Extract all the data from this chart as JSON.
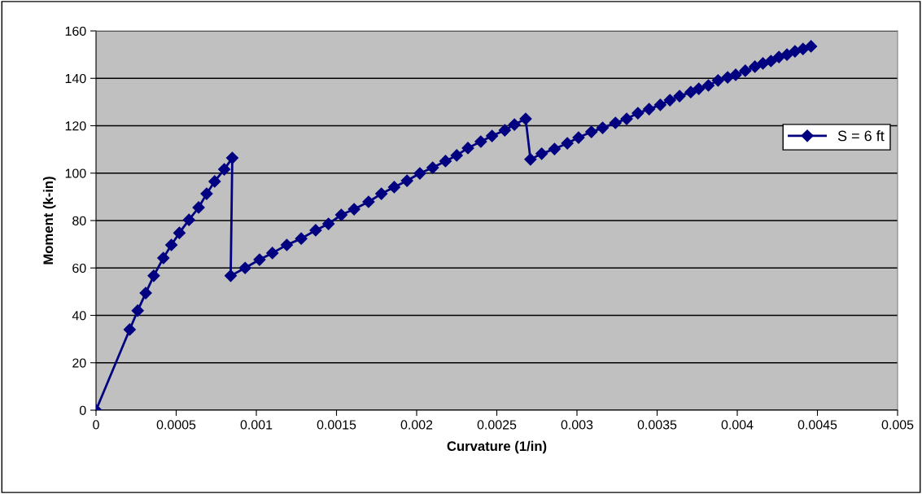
{
  "chart_data": {
    "type": "line",
    "xlabel": "Curvature (1/in)",
    "ylabel": "Moment (k-in)",
    "xlim": [
      0,
      0.005
    ],
    "xticks": [
      0,
      0.0005,
      0.001,
      0.0015,
      0.002,
      0.0025,
      0.003,
      0.0035,
      0.004,
      0.0045,
      0.005
    ],
    "ylim": [
      0,
      160
    ],
    "yticks": [
      0,
      20,
      40,
      60,
      80,
      100,
      120,
      140,
      160
    ],
    "grid": "y",
    "legend": "right",
    "marker": "diamond",
    "line_style": "solid",
    "series": [
      {
        "name": "S = 6 ft",
        "color": "#000080",
        "x": [
          0,
          0.00021,
          0.00026,
          0.00031,
          0.00036,
          0.00042,
          0.00047,
          0.00052,
          0.00058,
          0.00064,
          0.00069,
          0.00074,
          0.0008,
          0.00085,
          0.00084,
          0.00093,
          0.00102,
          0.0011,
          0.00119,
          0.00128,
          0.00137,
          0.00145,
          0.00153,
          0.00161,
          0.0017,
          0.00178,
          0.00186,
          0.00194,
          0.00202,
          0.0021,
          0.00218,
          0.00225,
          0.00232,
          0.0024,
          0.00247,
          0.00255,
          0.00261,
          0.00268,
          0.00271,
          0.00278,
          0.00286,
          0.00294,
          0.00301,
          0.00309,
          0.00316,
          0.00324,
          0.00331,
          0.00338,
          0.00345,
          0.00352,
          0.00358,
          0.00364,
          0.00371,
          0.00376,
          0.00382,
          0.00388,
          0.00394,
          0.00399,
          0.00405,
          0.00411,
          0.00416,
          0.00421,
          0.00426,
          0.00431,
          0.00436,
          0.00441,
          0.00446
        ],
        "values": [
          0,
          34,
          42,
          49.4,
          56.7,
          64.2,
          69.7,
          74.8,
          80.3,
          85.5,
          91.3,
          96.5,
          101.6,
          106.4,
          56.7,
          60,
          63.5,
          66.3,
          69.7,
          72.4,
          75.9,
          78.6,
          82.4,
          84.8,
          87.9,
          91.3,
          94.1,
          96.8,
          99.9,
          102.3,
          105.1,
          107.5,
          110.6,
          113.3,
          115.7,
          118.1,
          120.5,
          122.9,
          105.8,
          108.2,
          110.2,
          112.6,
          115,
          117.4,
          119.1,
          121.2,
          122.9,
          125.3,
          127,
          128.8,
          130.8,
          132.5,
          134.2,
          135.6,
          137,
          139.1,
          140.4,
          141.5,
          143.2,
          144.9,
          146.3,
          147.3,
          149,
          150,
          151.4,
          152.4,
          153.5
        ]
      }
    ]
  }
}
